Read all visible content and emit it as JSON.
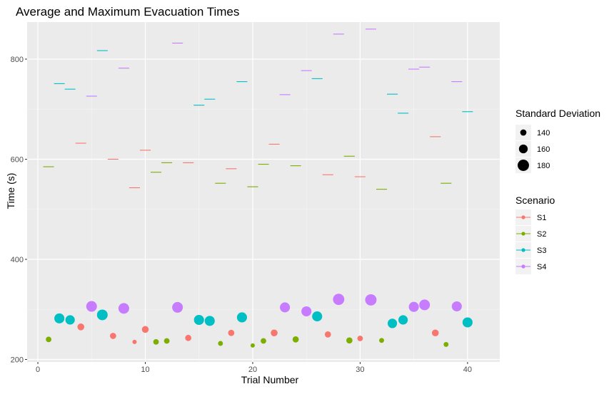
{
  "chart_data": {
    "type": "scatter",
    "title": "Average and Maximum Evacuation Times",
    "xlabel": "Trial Number",
    "ylabel": "Time (s)",
    "xlim": [
      -1,
      43
    ],
    "ylim": [
      195,
      874
    ],
    "x_ticks": [
      0,
      10,
      20,
      30,
      40
    ],
    "y_ticks": [
      200,
      400,
      600,
      800
    ],
    "grid": true,
    "legend_position": "right",
    "size_legend": {
      "title": "Standard Deviation",
      "entries": [
        {
          "label": "140",
          "value": 140
        },
        {
          "label": "160",
          "value": 160
        },
        {
          "label": "180",
          "value": 180
        }
      ]
    },
    "color_legend": {
      "title": "Scenario",
      "entries": [
        {
          "label": "S1",
          "color": "#F8766D"
        },
        {
          "label": "S2",
          "color": "#7CAE00"
        },
        {
          "label": "S3",
          "color": "#00BFC4"
        },
        {
          "label": "S4",
          "color": "#C77CFF"
        }
      ]
    },
    "points": [
      {
        "trial": 1,
        "scenario": "S2",
        "avg": 240,
        "max": 585,
        "sd": 135
      },
      {
        "trial": 2,
        "scenario": "S3",
        "avg": 282,
        "max": 751,
        "sd": 170
      },
      {
        "trial": 3,
        "scenario": "S3",
        "avg": 279,
        "max": 740,
        "sd": 165
      },
      {
        "trial": 4,
        "scenario": "S1",
        "avg": 265,
        "max": 632,
        "sd": 145
      },
      {
        "trial": 5,
        "scenario": "S4",
        "avg": 306,
        "max": 726,
        "sd": 175
      },
      {
        "trial": 6,
        "scenario": "S3",
        "avg": 289,
        "max": 817,
        "sd": 175
      },
      {
        "trial": 7,
        "scenario": "S1",
        "avg": 247,
        "max": 600,
        "sd": 140
      },
      {
        "trial": 8,
        "scenario": "S4",
        "avg": 302,
        "max": 782,
        "sd": 175
      },
      {
        "trial": 9,
        "scenario": "S1",
        "avg": 235,
        "max": 543,
        "sd": 125
      },
      {
        "trial": 10,
        "scenario": "S1",
        "avg": 260,
        "max": 618,
        "sd": 145
      },
      {
        "trial": 11,
        "scenario": "S2",
        "avg": 235,
        "max": 574,
        "sd": 135
      },
      {
        "trial": 12,
        "scenario": "S2",
        "avg": 237,
        "max": 593,
        "sd": 135
      },
      {
        "trial": 13,
        "scenario": "S4",
        "avg": 304,
        "max": 832,
        "sd": 175
      },
      {
        "trial": 14,
        "scenario": "S1",
        "avg": 243,
        "max": 593,
        "sd": 140
      },
      {
        "trial": 15,
        "scenario": "S3",
        "avg": 279,
        "max": 708,
        "sd": 170
      },
      {
        "trial": 16,
        "scenario": "S3",
        "avg": 277,
        "max": 720,
        "sd": 170
      },
      {
        "trial": 17,
        "scenario": "S2",
        "avg": 232,
        "max": 552,
        "sd": 130
      },
      {
        "trial": 18,
        "scenario": "S1",
        "avg": 253,
        "max": 581,
        "sd": 140
      },
      {
        "trial": 19,
        "scenario": "S3",
        "avg": 284,
        "max": 755,
        "sd": 170
      },
      {
        "trial": 20,
        "scenario": "S2",
        "avg": 228,
        "max": 545,
        "sd": 125
      },
      {
        "trial": 21,
        "scenario": "S2",
        "avg": 237,
        "max": 590,
        "sd": 135
      },
      {
        "trial": 22,
        "scenario": "S1",
        "avg": 253,
        "max": 630,
        "sd": 145
      },
      {
        "trial": 23,
        "scenario": "S4",
        "avg": 304,
        "max": 729,
        "sd": 170
      },
      {
        "trial": 24,
        "scenario": "S2",
        "avg": 240,
        "max": 587,
        "sd": 140
      },
      {
        "trial": 25,
        "scenario": "S4",
        "avg": 296,
        "max": 777,
        "sd": 170
      },
      {
        "trial": 26,
        "scenario": "S3",
        "avg": 286,
        "max": 761,
        "sd": 170
      },
      {
        "trial": 27,
        "scenario": "S1",
        "avg": 250,
        "max": 569,
        "sd": 140
      },
      {
        "trial": 28,
        "scenario": "S4",
        "avg": 320,
        "max": 850,
        "sd": 180
      },
      {
        "trial": 29,
        "scenario": "S2",
        "avg": 238,
        "max": 606,
        "sd": 140
      },
      {
        "trial": 30,
        "scenario": "S1",
        "avg": 242,
        "max": 565,
        "sd": 135
      },
      {
        "trial": 31,
        "scenario": "S4",
        "avg": 319,
        "max": 860,
        "sd": 180
      },
      {
        "trial": 32,
        "scenario": "S2",
        "avg": 238,
        "max": 540,
        "sd": 130
      },
      {
        "trial": 33,
        "scenario": "S3",
        "avg": 272,
        "max": 730,
        "sd": 165
      },
      {
        "trial": 34,
        "scenario": "S3",
        "avg": 279,
        "max": 692,
        "sd": 165
      },
      {
        "trial": 35,
        "scenario": "S4",
        "avg": 305,
        "max": 780,
        "sd": 170
      },
      {
        "trial": 36,
        "scenario": "S4",
        "avg": 309,
        "max": 784,
        "sd": 175
      },
      {
        "trial": 37,
        "scenario": "S1",
        "avg": 253,
        "max": 645,
        "sd": 145
      },
      {
        "trial": 38,
        "scenario": "S2",
        "avg": 230,
        "max": 552,
        "sd": 130
      },
      {
        "trial": 39,
        "scenario": "S4",
        "avg": 306,
        "max": 755,
        "sd": 170
      },
      {
        "trial": 40,
        "scenario": "S3",
        "avg": 274,
        "max": 695,
        "sd": 170
      }
    ]
  }
}
